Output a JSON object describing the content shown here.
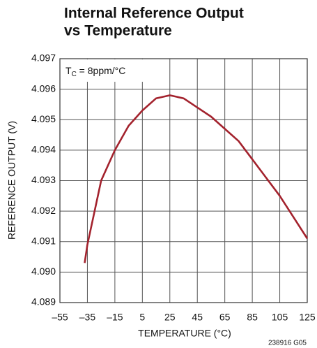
{
  "chart_data": {
    "type": "line",
    "title": [
      "Internal Reference Output",
      "vs Temperature"
    ],
    "annotation": [
      "T",
      "C",
      " = 8ppm/°C"
    ],
    "xlabel": "TEMPERATURE (°C)",
    "ylabel": "REFERENCE OUTPUT (V)",
    "footnote": "238916 G05",
    "x": [
      -37,
      -35,
      -25,
      -15,
      -5,
      5,
      15,
      25,
      35,
      45,
      55,
      65,
      75,
      85,
      95,
      105,
      115,
      125
    ],
    "series": [
      {
        "name": "Reference Output",
        "color": "#a3222d",
        "values": [
          4.0903,
          4.0909,
          4.093,
          4.094,
          4.0948,
          4.0953,
          4.0957,
          4.0958,
          4.0957,
          4.0954,
          4.0951,
          4.0947,
          4.0943,
          4.0937,
          4.0931,
          4.0925,
          4.0918,
          4.0911
        ]
      }
    ],
    "xlim": [
      -55,
      125
    ],
    "xticks": [
      {
        "value": -55,
        "label": "–55"
      },
      {
        "value": -35,
        "label": "–35"
      },
      {
        "value": -15,
        "label": "–15"
      },
      5,
      25,
      45,
      65,
      85,
      105,
      125
    ],
    "ylim": [
      4.089,
      4.097
    ],
    "yticks": [
      4.089,
      {
        "value": 4.09,
        "label": "4.090"
      },
      4.091,
      4.092,
      4.093,
      4.094,
      4.095,
      4.096,
      4.097
    ],
    "grid": true
  }
}
